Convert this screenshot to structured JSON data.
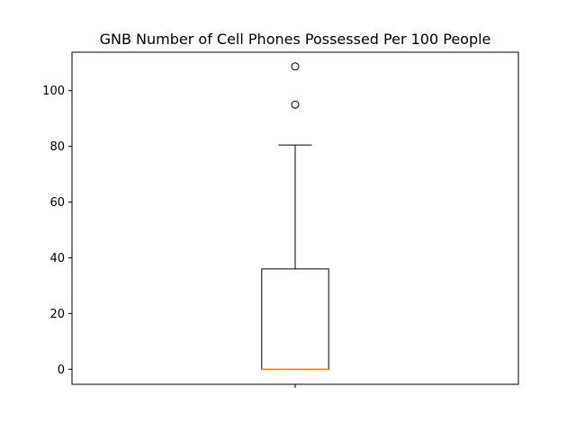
{
  "chart_data": {
    "type": "box",
    "title": "GNB Number of Cell Phones Possessed Per 100 People",
    "xlabel": "",
    "ylabel": "",
    "ylim": [
      -5.4,
      113.8
    ],
    "yticks": [
      0,
      20,
      40,
      60,
      80,
      100
    ],
    "ytick_labels": [
      "0",
      "20",
      "40",
      "60",
      "80",
      "100"
    ],
    "xtick_labels": [
      ""
    ],
    "grid": false,
    "boxes": [
      {
        "whisker_low": 0,
        "q1": 0,
        "median": 0,
        "q3": 36,
        "whisker_high": 80.5,
        "outliers": [
          95,
          108.7
        ]
      }
    ],
    "colors": {
      "box": "#000000",
      "median": "#ff7f0e",
      "background": "#ffffff"
    }
  }
}
